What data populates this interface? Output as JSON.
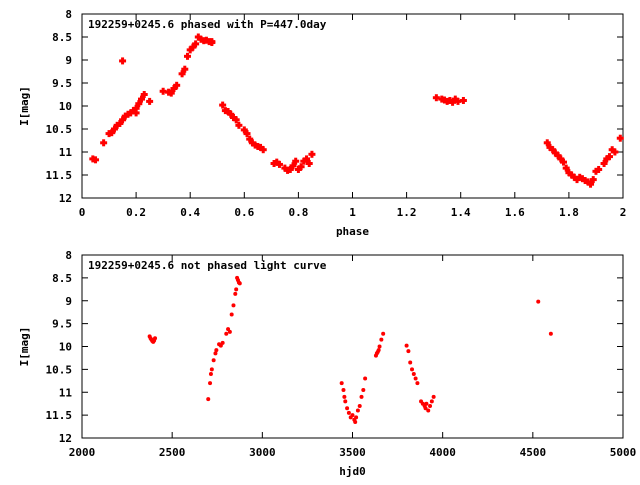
{
  "chart_data": [
    {
      "type": "scatter",
      "title": "192259+0245.6 phased with P=447.0day",
      "xlabel": "phase",
      "ylabel": "I[mag]",
      "xlim": [
        0,
        2
      ],
      "ylim": [
        12,
        8
      ],
      "y_reversed": true,
      "xticks": [
        "0",
        "0.2",
        "0.4",
        "0.6",
        "0.8",
        "1",
        "1.2",
        "1.4",
        "1.6",
        "1.8",
        "2"
      ],
      "xtick_values": [
        0,
        0.2,
        0.4,
        0.6,
        0.8,
        1,
        1.2,
        1.4,
        1.6,
        1.8,
        2
      ],
      "yticks": [
        "8",
        "8.5",
        "9",
        "9.5",
        "10",
        "10.5",
        "11",
        "11.5",
        "12"
      ],
      "ytick_values": [
        8,
        8.5,
        9,
        9.5,
        10,
        10.5,
        11,
        11.5,
        12
      ],
      "grid": false,
      "marker_color": "#ff0000",
      "series": [
        {
          "points": [
            [
              0.04,
              11.15
            ],
            [
              0.05,
              11.17
            ],
            [
              0.08,
              10.8
            ],
            [
              0.1,
              10.6
            ],
            [
              0.11,
              10.58
            ],
            [
              0.12,
              10.5
            ],
            [
              0.13,
              10.42
            ],
            [
              0.14,
              10.38
            ],
            [
              0.15,
              9.02
            ],
            [
              0.15,
              10.3
            ],
            [
              0.16,
              10.22
            ],
            [
              0.17,
              10.18
            ],
            [
              0.18,
              10.15
            ],
            [
              0.19,
              10.1
            ],
            [
              0.2,
              10.05
            ],
            [
              0.2,
              10.15
            ],
            [
              0.21,
              9.95
            ],
            [
              0.22,
              9.85
            ],
            [
              0.23,
              9.75
            ],
            [
              0.25,
              9.9
            ],
            [
              0.3,
              9.68
            ],
            [
              0.32,
              9.7
            ],
            [
              0.33,
              9.72
            ],
            [
              0.34,
              9.62
            ],
            [
              0.35,
              9.55
            ],
            [
              0.37,
              9.3
            ],
            [
              0.38,
              9.2
            ],
            [
              0.39,
              8.92
            ],
            [
              0.4,
              8.78
            ],
            [
              0.41,
              8.72
            ],
            [
              0.42,
              8.65
            ],
            [
              0.43,
              8.5
            ],
            [
              0.44,
              8.55
            ],
            [
              0.45,
              8.58
            ],
            [
              0.46,
              8.57
            ],
            [
              0.47,
              8.6
            ],
            [
              0.48,
              8.6
            ],
            [
              0.48,
              8.62
            ],
            [
              0.52,
              9.98
            ],
            [
              0.53,
              10.1
            ],
            [
              0.54,
              10.12
            ],
            [
              0.55,
              10.18
            ],
            [
              0.56,
              10.25
            ],
            [
              0.57,
              10.3
            ],
            [
              0.58,
              10.42
            ],
            [
              0.6,
              10.52
            ],
            [
              0.61,
              10.6
            ],
            [
              0.62,
              10.72
            ],
            [
              0.63,
              10.8
            ],
            [
              0.64,
              10.85
            ],
            [
              0.65,
              10.88
            ],
            [
              0.66,
              10.9
            ],
            [
              0.67,
              10.95
            ],
            [
              0.71,
              11.25
            ],
            [
              0.72,
              11.22
            ],
            [
              0.73,
              11.27
            ],
            [
              0.75,
              11.35
            ],
            [
              0.76,
              11.4
            ],
            [
              0.77,
              11.38
            ],
            [
              0.78,
              11.3
            ],
            [
              0.79,
              11.2
            ],
            [
              0.8,
              11.38
            ],
            [
              0.81,
              11.32
            ],
            [
              0.82,
              11.2
            ],
            [
              0.83,
              11.15
            ],
            [
              0.84,
              11.25
            ],
            [
              0.85,
              11.05
            ],
            [
              1.31,
              9.82
            ],
            [
              1.33,
              9.85
            ],
            [
              1.34,
              9.87
            ],
            [
              1.35,
              9.9
            ],
            [
              1.36,
              9.88
            ],
            [
              1.37,
              9.92
            ],
            [
              1.38,
              9.85
            ],
            [
              1.39,
              9.9
            ],
            [
              1.41,
              9.88
            ],
            [
              1.72,
              10.8
            ],
            [
              1.73,
              10.9
            ],
            [
              1.74,
              10.95
            ],
            [
              1.75,
              11.02
            ],
            [
              1.76,
              11.08
            ],
            [
              1.77,
              11.15
            ],
            [
              1.78,
              11.22
            ],
            [
              1.79,
              11.35
            ],
            [
              1.8,
              11.45
            ],
            [
              1.81,
              11.5
            ],
            [
              1.82,
              11.55
            ],
            [
              1.83,
              11.6
            ],
            [
              1.84,
              11.55
            ],
            [
              1.85,
              11.58
            ],
            [
              1.86,
              11.62
            ],
            [
              1.87,
              11.65
            ],
            [
              1.88,
              11.7
            ],
            [
              1.89,
              11.6
            ],
            [
              1.9,
              11.42
            ],
            [
              1.91,
              11.38
            ],
            [
              1.93,
              11.25
            ],
            [
              1.94,
              11.15
            ],
            [
              1.95,
              11.1
            ],
            [
              1.96,
              10.95
            ],
            [
              1.97,
              11.0
            ],
            [
              1.99,
              10.7
            ]
          ]
        }
      ]
    },
    {
      "type": "scatter",
      "title": "192259+0245.6 not phased light curve",
      "xlabel": "hjd0",
      "ylabel": "I[mag]",
      "xlim": [
        2000,
        5000
      ],
      "ylim": [
        12,
        8
      ],
      "y_reversed": true,
      "xticks": [
        "2000",
        "2500",
        "3000",
        "3500",
        "4000",
        "4500",
        "5000"
      ],
      "xtick_values": [
        2000,
        2500,
        3000,
        3500,
        4000,
        4500,
        5000
      ],
      "yticks": [
        "8",
        "8.5",
        "9",
        "9.5",
        "10",
        "10.5",
        "11",
        "11.5",
        "12"
      ],
      "ytick_values": [
        8,
        8.5,
        9,
        9.5,
        10,
        10.5,
        11,
        11.5,
        12
      ],
      "grid": false,
      "marker_color": "#ff0000",
      "series": [
        {
          "points": [
            [
              2375,
              9.78
            ],
            [
              2380,
              9.82
            ],
            [
              2385,
              9.85
            ],
            [
              2390,
              9.88
            ],
            [
              2395,
              9.9
            ],
            [
              2400,
              9.87
            ],
            [
              2405,
              9.82
            ],
            [
              2700,
              11.15
            ],
            [
              2710,
              10.8
            ],
            [
              2715,
              10.6
            ],
            [
              2720,
              10.5
            ],
            [
              2730,
              10.3
            ],
            [
              2740,
              10.15
            ],
            [
              2745,
              10.08
            ],
            [
              2760,
              9.95
            ],
            [
              2770,
              9.98
            ],
            [
              2780,
              9.92
            ],
            [
              2800,
              9.72
            ],
            [
              2810,
              9.62
            ],
            [
              2820,
              9.68
            ],
            [
              2830,
              9.3
            ],
            [
              2840,
              9.1
            ],
            [
              2850,
              8.85
            ],
            [
              2855,
              8.75
            ],
            [
              2860,
              8.5
            ],
            [
              2865,
              8.55
            ],
            [
              2870,
              8.6
            ],
            [
              2875,
              8.62
            ],
            [
              3440,
              10.8
            ],
            [
              3450,
              10.95
            ],
            [
              3455,
              11.1
            ],
            [
              3460,
              11.2
            ],
            [
              3470,
              11.35
            ],
            [
              3480,
              11.45
            ],
            [
              3490,
              11.55
            ],
            [
              3500,
              11.5
            ],
            [
              3510,
              11.6
            ],
            [
              3515,
              11.65
            ],
            [
              3520,
              11.55
            ],
            [
              3530,
              11.4
            ],
            [
              3540,
              11.3
            ],
            [
              3550,
              11.1
            ],
            [
              3560,
              10.95
            ],
            [
              3570,
              10.7
            ],
            [
              3630,
              10.2
            ],
            [
              3635,
              10.15
            ],
            [
              3640,
              10.12
            ],
            [
              3645,
              10.08
            ],
            [
              3650,
              10.0
            ],
            [
              3660,
              9.85
            ],
            [
              3670,
              9.72
            ],
            [
              3800,
              9.98
            ],
            [
              3810,
              10.1
            ],
            [
              3820,
              10.35
            ],
            [
              3830,
              10.5
            ],
            [
              3840,
              10.6
            ],
            [
              3850,
              10.7
            ],
            [
              3860,
              10.8
            ],
            [
              3880,
              11.2
            ],
            [
              3890,
              11.25
            ],
            [
              3900,
              11.3
            ],
            [
              3905,
              11.35
            ],
            [
              3910,
              11.25
            ],
            [
              3920,
              11.4
            ],
            [
              3930,
              11.3
            ],
            [
              3940,
              11.2
            ],
            [
              3950,
              11.1
            ],
            [
              4530,
              9.02
            ],
            [
              4600,
              9.72
            ]
          ]
        }
      ]
    }
  ]
}
